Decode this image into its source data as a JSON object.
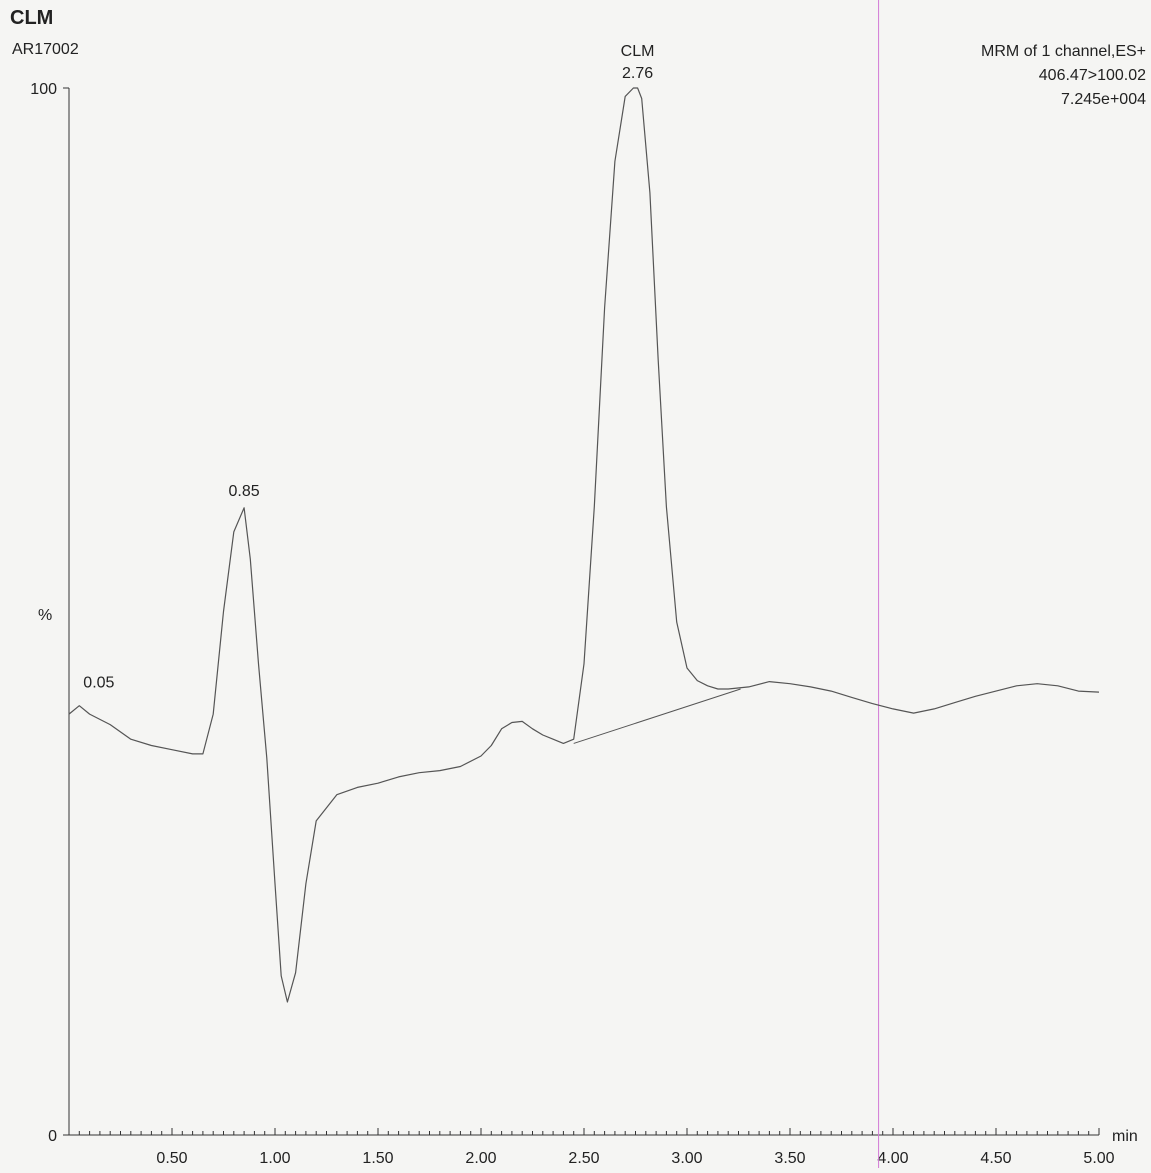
{
  "header": {
    "title": "CLM",
    "sample_id": "AR17002",
    "info_lines": [
      "MRM of 1 channel,ES+",
      "406.47>100.02",
      "7.245e+004"
    ]
  },
  "chart_data": {
    "type": "line",
    "title": "CLM",
    "xlabel": "min",
    "ylabel": "%",
    "xlim": [
      0,
      5.0
    ],
    "ylim": [
      0,
      100
    ],
    "x_tick_labels": [
      "0.50",
      "1.00",
      "1.50",
      "2.00",
      "2.50",
      "3.00",
      "3.50",
      "4.00",
      "4.50",
      "5.00"
    ],
    "y_tick_labels": [
      "0",
      "100"
    ],
    "grid": false,
    "legend": "none",
    "series": [
      {
        "x": [
          0.0,
          0.05,
          0.1,
          0.2,
          0.3,
          0.4,
          0.5,
          0.6,
          0.65,
          0.7,
          0.75,
          0.8,
          0.85,
          0.88,
          0.92,
          0.96,
          1.0,
          1.03,
          1.06,
          1.1,
          1.15,
          1.2,
          1.3,
          1.4,
          1.5,
          1.6,
          1.7,
          1.8,
          1.9,
          2.0,
          2.05,
          2.1,
          2.15,
          2.2,
          2.25,
          2.3,
          2.35,
          2.4,
          2.45,
          2.5,
          2.55,
          2.6,
          2.65,
          2.7,
          2.74,
          2.76,
          2.78,
          2.82,
          2.86,
          2.9,
          2.95,
          3.0,
          3.05,
          3.1,
          3.15,
          3.2,
          3.3,
          3.4,
          3.5,
          3.6,
          3.7,
          3.8,
          3.9,
          4.0,
          4.1,
          4.2,
          4.3,
          4.4,
          4.5,
          4.6,
          4.7,
          4.8,
          4.9,
          5.0
        ],
        "y": [
          40.2,
          41.0,
          40.2,
          39.2,
          37.8,
          37.2,
          36.8,
          36.4,
          36.4,
          40.2,
          50.0,
          57.6,
          59.9,
          55.0,
          45.0,
          36.0,
          24.0,
          15.2,
          12.7,
          15.5,
          24.0,
          30.0,
          32.5,
          33.2,
          33.6,
          34.2,
          34.6,
          34.8,
          35.2,
          36.2,
          37.2,
          38.8,
          39.4,
          39.5,
          38.8,
          38.2,
          37.8,
          37.4,
          37.8,
          45.0,
          60.0,
          79.0,
          93.0,
          99.2,
          100.0,
          100.0,
          99.0,
          90.0,
          74.0,
          60.0,
          49.0,
          44.6,
          43.4,
          42.9,
          42.6,
          42.6,
          42.8,
          43.3,
          43.1,
          42.8,
          42.4,
          41.8,
          41.2,
          40.7,
          40.3,
          40.7,
          41.3,
          41.9,
          42.4,
          42.9,
          43.1,
          42.9,
          42.4,
          42.3
        ]
      }
    ],
    "peaks": [
      {
        "x": 0.05,
        "y": 41.0,
        "label": "0.05"
      },
      {
        "x": 0.85,
        "y": 59.9,
        "label": "0.85"
      },
      {
        "x": 2.76,
        "y": 100.0,
        "name": "CLM",
        "label": "2.76"
      }
    ],
    "integration_baseline": {
      "x": [
        2.45,
        3.26
      ],
      "y": [
        37.4,
        42.6
      ]
    },
    "marker_line_x": 3.93
  }
}
